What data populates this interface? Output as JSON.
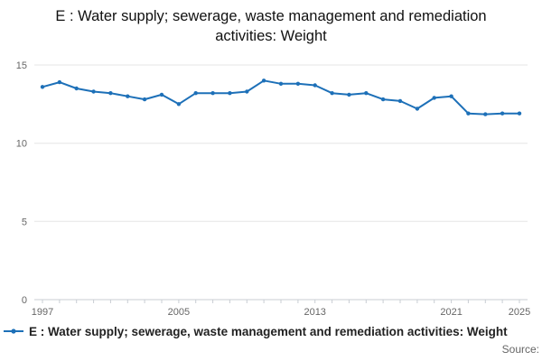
{
  "title": "E : Water supply; sewerage, waste management and remediation activities: Weight",
  "legend": {
    "label": "E : Water supply; sewerage, waste management and remediation activities: Weight"
  },
  "source": "Source:",
  "colors": {
    "series": "#1d70b8",
    "grid": "#e6e6e6",
    "axis": "#c8cdd3",
    "label": "#666666",
    "title": "#111111"
  },
  "chart_data": {
    "type": "line",
    "title": "E : Water supply; sewerage, waste management and remediation activities: Weight",
    "xlabel": "",
    "ylabel": "",
    "ylim": [
      0,
      15
    ],
    "yticks": [
      0,
      5,
      10,
      15
    ],
    "xticks_labeled": [
      1997,
      2005,
      2013,
      2021,
      2025
    ],
    "grid": "horizontal",
    "legend_position": "bottom-left",
    "x": [
      1997,
      1998,
      1999,
      2000,
      2001,
      2002,
      2003,
      2004,
      2005,
      2006,
      2007,
      2008,
      2009,
      2010,
      2011,
      2012,
      2013,
      2014,
      2015,
      2016,
      2017,
      2018,
      2019,
      2020,
      2021,
      2022,
      2023,
      2024,
      2025
    ],
    "series": [
      {
        "name": "E : Water supply; sewerage, waste management and remediation activities: Weight",
        "values": [
          13.6,
          13.9,
          13.5,
          13.3,
          13.2,
          13.0,
          12.8,
          13.1,
          12.5,
          13.2,
          13.2,
          13.2,
          13.3,
          14.0,
          13.8,
          13.8,
          13.7,
          13.2,
          13.1,
          13.2,
          12.8,
          12.7,
          12.2,
          12.9,
          13.0,
          11.9,
          11.85,
          11.9,
          11.9
        ]
      }
    ]
  }
}
